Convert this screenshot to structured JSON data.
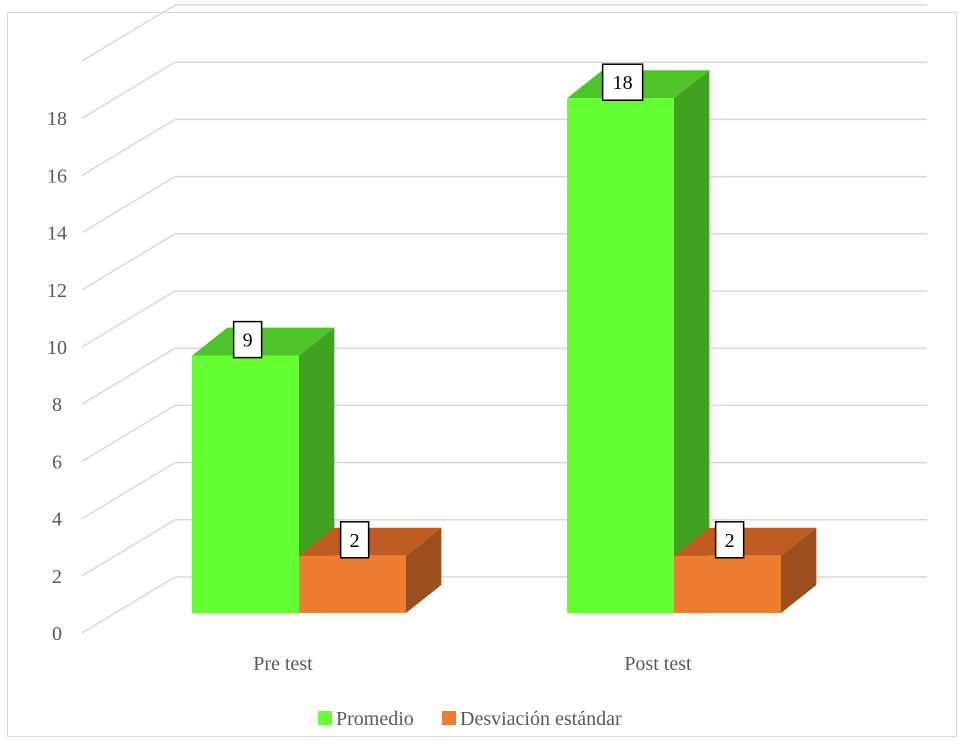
{
  "chart_data": {
    "type": "bar",
    "style": "3d-clustered-column",
    "title": "",
    "xlabel": "",
    "ylabel": "",
    "categories": [
      "Pre test",
      "Post test"
    ],
    "series": [
      {
        "name": "Promedio",
        "values": [
          9,
          18
        ],
        "color": "#66ff33",
        "side_color": "#41a121",
        "top_color": "#4fc42a"
      },
      {
        "name": "Desviación estándar",
        "values": [
          2,
          2
        ],
        "color": "#ed7d31",
        "side_color": "#9a4f1d",
        "top_color": "#c05c22"
      }
    ],
    "ylim": [
      0,
      20
    ],
    "yticks": [
      0,
      2,
      4,
      6,
      8,
      10,
      12,
      14,
      16,
      18
    ],
    "data_labels": true,
    "grid": true,
    "legend": "bottom",
    "gridline_color": "#d9d9d9"
  }
}
